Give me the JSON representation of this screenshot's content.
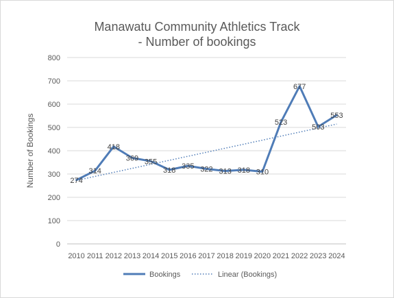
{
  "chart_data": {
    "type": "line",
    "title_line1": "Manawatu Community Athletics Track",
    "title_line2": "- Number of bookings",
    "ylabel": "Number of Bookings",
    "xlabel": "",
    "x": [
      "2010",
      "2011",
      "2012",
      "2013",
      "2014",
      "2015",
      "2016",
      "2017",
      "2018",
      "2019",
      "2020",
      "2021",
      "2022",
      "2023",
      "2024"
    ],
    "series": [
      {
        "name": "Bookings",
        "values": [
          274,
          314,
          418,
          369,
          355,
          318,
          335,
          322,
          313,
          318,
          310,
          523,
          677,
          503,
          553
        ],
        "color": "#4F7CB7",
        "style": "solid"
      }
    ],
    "trendline": {
      "name": "Linear (Bookings)",
      "type": "linear",
      "color": "#4F7CB7",
      "style": "dotted"
    },
    "ylim": [
      0,
      800
    ],
    "yticks": [
      "0",
      "100",
      "200",
      "300",
      "400",
      "500",
      "600",
      "700",
      "800"
    ],
    "grid": true,
    "legend_position": "bottom"
  }
}
